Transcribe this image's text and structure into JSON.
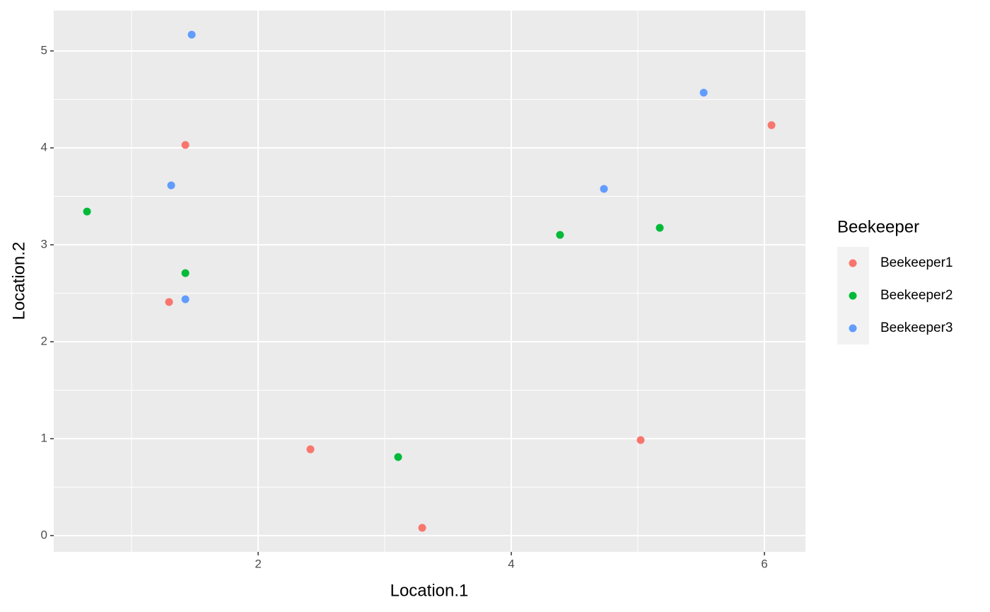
{
  "chart_data": {
    "type": "scatter",
    "x_label": "Location.1",
    "y_label": "Location.2",
    "legend_title": "Beekeeper",
    "xlim": [
      0.385,
      6.324
    ],
    "ylim": [
      -0.168,
      5.416
    ],
    "xticks": [
      2,
      4,
      6
    ],
    "yticks": [
      0,
      1,
      2,
      3,
      4,
      5
    ],
    "grid": true,
    "legend_position": "right",
    "series": [
      {
        "name": "Beekeeper1",
        "color": "#F8766D",
        "x": [
          1.425,
          1.296,
          2.413,
          3.296,
          5.022,
          6.056
        ],
        "values": [
          4.03,
          2.41,
          0.89,
          0.08,
          0.985,
          4.234
        ]
      },
      {
        "name": "Beekeeper2",
        "color": "#00BA38",
        "x": [
          0.648,
          1.425,
          3.106,
          4.385,
          5.173
        ],
        "values": [
          3.343,
          2.708,
          0.81,
          3.102,
          3.175
        ]
      },
      {
        "name": "Beekeeper3",
        "color": "#619CFF",
        "x": [
          1.475,
          1.313,
          1.425,
          4.732,
          5.52
        ],
        "values": [
          5.168,
          3.613,
          2.438,
          3.577,
          4.569
        ]
      }
    ]
  }
}
